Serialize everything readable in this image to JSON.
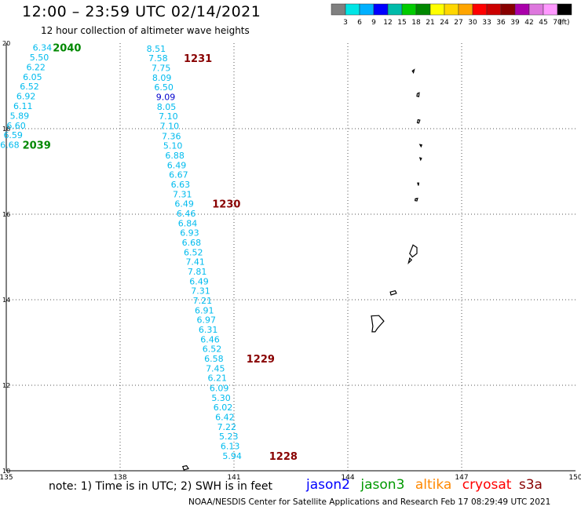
{
  "header": {
    "title": "12:00 – 23:59 UTC 02/14/2021",
    "subtitle": "12 hour collection of altimeter wave heights"
  },
  "colorbar": {
    "colors": [
      "#808080",
      "#00e5e5",
      "#00b0ff",
      "#0000ff",
      "#00bbaa",
      "#00cc00",
      "#008800",
      "#ffff00",
      "#ffd700",
      "#ffa500",
      "#ff0000",
      "#cc0000",
      "#880000",
      "#aa00aa",
      "#dd77dd",
      "#ff99ff",
      "#000000"
    ],
    "labels": [
      "3",
      "6",
      "9",
      "12",
      "15",
      "18",
      "21",
      "24",
      "27",
      "30",
      "33",
      "36",
      "39",
      "42",
      "45",
      "70"
    ],
    "unit": "(ft)"
  },
  "chart_data": {
    "type": "scatter",
    "xlim": [
      135,
      150
    ],
    "ylim": [
      10,
      20
    ],
    "xticks": [
      "135",
      "138",
      "141",
      "144",
      "147",
      "150"
    ],
    "yticks": [
      "10",
      "12",
      "14",
      "16",
      "18",
      "20"
    ],
    "grid": true,
    "series": [
      {
        "color": "#00bbee",
        "points": [
          {
            "x": 135.95,
            "y": 19.9,
            "label": "6.34"
          },
          {
            "x": 135.87,
            "y": 19.67,
            "label": "5.50"
          },
          {
            "x": 135.78,
            "y": 19.44,
            "label": "6.22"
          },
          {
            "x": 135.69,
            "y": 19.21,
            "label": "6.05"
          },
          {
            "x": 135.61,
            "y": 18.99,
            "label": "6.52"
          },
          {
            "x": 135.52,
            "y": 18.76,
            "label": "6.92"
          },
          {
            "x": 135.44,
            "y": 18.53,
            "label": "6.11"
          },
          {
            "x": 135.35,
            "y": 18.3,
            "label": "5.89"
          },
          {
            "x": 135.26,
            "y": 18.07,
            "label": "6.60"
          },
          {
            "x": 135.18,
            "y": 17.85,
            "label": "6.59"
          },
          {
            "x": 135.09,
            "y": 17.62,
            "label": "6.68"
          }
        ]
      },
      {
        "color": "#00bbee",
        "points": [
          {
            "x": 138.95,
            "y": 19.87,
            "label": "8.51"
          },
          {
            "x": 139.0,
            "y": 19.65,
            "label": "7.58"
          },
          {
            "x": 139.08,
            "y": 19.42,
            "label": "7.75"
          },
          {
            "x": 139.1,
            "y": 19.19,
            "label": "8.09"
          },
          {
            "x": 139.15,
            "y": 18.97,
            "label": "6.50"
          },
          {
            "x": 139.2,
            "y": 18.74,
            "label": "9.09",
            "color": "#0000cc"
          },
          {
            "x": 139.22,
            "y": 18.51,
            "label": "8.05"
          },
          {
            "x": 139.27,
            "y": 18.29,
            "label": "7.10"
          },
          {
            "x": 139.3,
            "y": 18.06,
            "label": "7.10"
          },
          {
            "x": 139.35,
            "y": 17.83,
            "label": "7.36"
          },
          {
            "x": 139.39,
            "y": 17.61,
            "label": "5.10"
          },
          {
            "x": 139.44,
            "y": 17.38,
            "label": "6.88"
          },
          {
            "x": 139.49,
            "y": 17.15,
            "label": "6.49"
          },
          {
            "x": 139.54,
            "y": 16.93,
            "label": "6.67"
          },
          {
            "x": 139.59,
            "y": 16.7,
            "label": "6.63"
          },
          {
            "x": 139.64,
            "y": 16.47,
            "label": "7.31"
          },
          {
            "x": 139.69,
            "y": 16.25,
            "label": "6.49"
          },
          {
            "x": 139.74,
            "y": 16.02,
            "label": "6.46"
          },
          {
            "x": 139.78,
            "y": 15.79,
            "label": "6.84"
          },
          {
            "x": 139.83,
            "y": 15.57,
            "label": "6.93"
          },
          {
            "x": 139.88,
            "y": 15.34,
            "label": "6.68"
          },
          {
            "x": 139.93,
            "y": 15.11,
            "label": "6.52"
          },
          {
            "x": 139.98,
            "y": 14.89,
            "label": "7.41"
          },
          {
            "x": 140.03,
            "y": 14.66,
            "label": "7.81"
          },
          {
            "x": 140.08,
            "y": 14.43,
            "label": "6.49"
          },
          {
            "x": 140.12,
            "y": 14.21,
            "label": "7.31"
          },
          {
            "x": 140.17,
            "y": 13.98,
            "label": "7.21"
          },
          {
            "x": 140.22,
            "y": 13.75,
            "label": "6.91"
          },
          {
            "x": 140.27,
            "y": 13.53,
            "label": "6.97"
          },
          {
            "x": 140.32,
            "y": 13.3,
            "label": "6.31"
          },
          {
            "x": 140.37,
            "y": 13.07,
            "label": "6.46"
          },
          {
            "x": 140.42,
            "y": 12.85,
            "label": "6.52"
          },
          {
            "x": 140.47,
            "y": 12.62,
            "label": "6.58"
          },
          {
            "x": 140.51,
            "y": 12.39,
            "label": "7.45"
          },
          {
            "x": 140.56,
            "y": 12.17,
            "label": "6.21"
          },
          {
            "x": 140.61,
            "y": 11.94,
            "label": "6.09"
          },
          {
            "x": 140.66,
            "y": 11.71,
            "label": "5.30"
          },
          {
            "x": 140.71,
            "y": 11.49,
            "label": "6.02"
          },
          {
            "x": 140.76,
            "y": 11.26,
            "label": "6.42"
          },
          {
            "x": 140.81,
            "y": 11.03,
            "label": "7.22"
          },
          {
            "x": 140.86,
            "y": 10.81,
            "label": "5.23"
          },
          {
            "x": 140.9,
            "y": 10.58,
            "label": "6.13"
          },
          {
            "x": 140.95,
            "y": 10.35,
            "label": "5.94"
          }
        ]
      }
    ],
    "annotations": [
      {
        "x": 136.6,
        "y": 19.9,
        "text": "2040",
        "color": "#008800"
      },
      {
        "x": 135.8,
        "y": 17.62,
        "text": "2039",
        "color": "#008800"
      },
      {
        "x": 140.05,
        "y": 19.65,
        "text": "1231",
        "color": "#880000"
      },
      {
        "x": 140.8,
        "y": 16.25,
        "text": "1230",
        "color": "#880000"
      },
      {
        "x": 141.7,
        "y": 12.62,
        "text": "1229",
        "color": "#880000"
      },
      {
        "x": 142.3,
        "y": 10.35,
        "text": "1228",
        "color": "#880000"
      }
    ]
  },
  "footer": {
    "note": "note:  1) Time is in UTC;  2) SWH is in feet",
    "satellites": [
      {
        "name": "jason2",
        "color": "#0000ff"
      },
      {
        "name": "jason3",
        "color": "#009900"
      },
      {
        "name": "altika",
        "color": "#ff8800"
      },
      {
        "name": "cryosat",
        "color": "#ff0000"
      },
      {
        "name": "s3a",
        "color": "#880000"
      }
    ],
    "credit": "NOAA/NESDIS Center for Satellite Applications and Research    Feb 17 08:29:49 UTC 2021"
  }
}
